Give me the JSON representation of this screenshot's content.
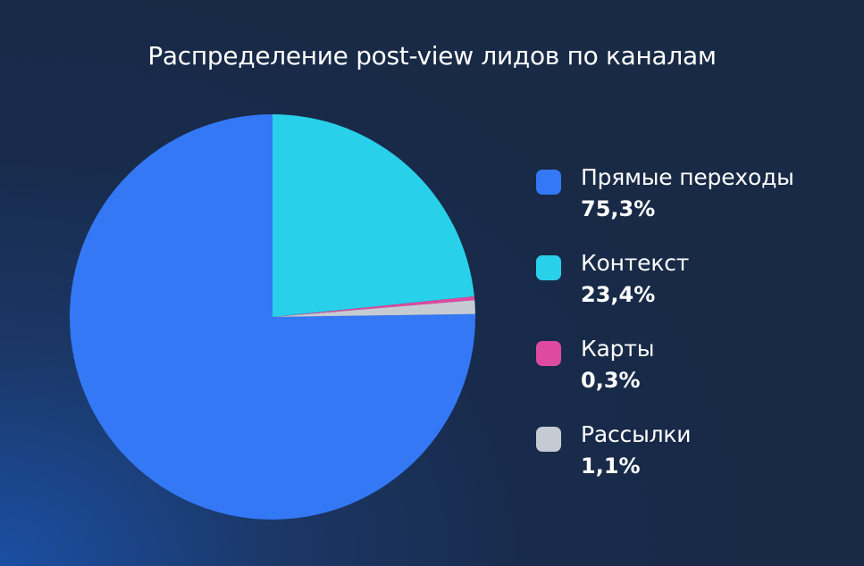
{
  "chart_data": {
    "type": "pie",
    "title": "Распределение post-view лидов по каналам",
    "slices": [
      {
        "label": "Прямые переходы",
        "value": 75.3,
        "display": "75,3%",
        "color": "#3478f6"
      },
      {
        "label": "Контекст",
        "value": 23.4,
        "display": "23,4%",
        "color": "#29d0ea"
      },
      {
        "label": "Карты",
        "value": 0.3,
        "display": "0,3%",
        "color": "#dd4aa0"
      },
      {
        "label": "Рассылки",
        "value": 1.1,
        "display": "1,1%",
        "color": "#c5cbd3"
      }
    ],
    "legend_position": "right"
  }
}
